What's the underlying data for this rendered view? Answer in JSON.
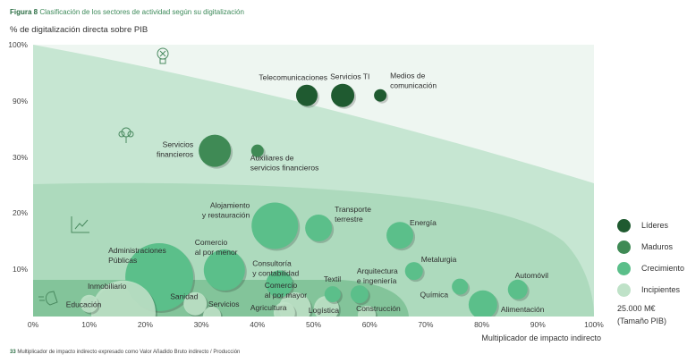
{
  "figure": {
    "label": "Figura 8",
    "title": "Clasificación de los sectores de actividad según su digitalización"
  },
  "footnote": {
    "number": "33",
    "text": "Multiplicador de impacto indirecto expresado como Valor Añadido Bruto indirecto / Producción"
  },
  "chart_data": {
    "type": "scatter",
    "subtype": "bubble",
    "xlabel": "Multiplicador de impacto indirecto",
    "ylabel": "% de digitalización directa sobre PIB",
    "x_ticks": [
      "0%",
      "10%",
      "20%",
      "30%",
      "40%",
      "50%",
      "60%",
      "70%",
      "80%",
      "90%",
      "100%"
    ],
    "y_ticks": [
      "100%",
      "90%",
      "30%",
      "20%",
      "10%"
    ],
    "y_tick_values": [
      100,
      90,
      30,
      20,
      10
    ],
    "xlim": [
      0,
      100
    ],
    "ylim": [
      0,
      100
    ],
    "y_scale": "piecewise (broken between 30% and 90%)",
    "grid": false,
    "legend_position": "right",
    "colors": {
      "Líderes": "#1f5a30",
      "Maduros": "#3f8a55",
      "Crecimiento": "#5bbf8a",
      "Incipientes": "#bfe2c8"
    },
    "legend": {
      "items": [
        "Líderes",
        "Maduros",
        "Crecimiento",
        "Incipientes"
      ],
      "size_label": "25.000 M€",
      "size_note": "(Tamaño PIB)"
    },
    "zone_icons": [
      "lightbulb-icon",
      "tree-icon",
      "growth-chart-icon",
      "hand-icon"
    ],
    "points": [
      {
        "label": "Telecomunicaciones",
        "x": 48.8,
        "y": 91,
        "size": 12,
        "group": "Líderes"
      },
      {
        "label": "Servicios TI",
        "x": 55.2,
        "y": 91,
        "size": 13,
        "group": "Líderes"
      },
      {
        "label": "Medios de comunicación",
        "x": 61.9,
        "y": 91,
        "size": 7,
        "group": "Líderes"
      },
      {
        "label": "Servicios financieros",
        "x": 32.4,
        "y": 37,
        "size": 18,
        "group": "Maduros"
      },
      {
        "label": "Auxiliares de servicios financieros",
        "x": 40.0,
        "y": 37,
        "size": 7,
        "group": "Maduros"
      },
      {
        "label": "Alojamiento y restauración",
        "x": 43.1,
        "y": 17.7,
        "size": 26,
        "group": "Crecimiento"
      },
      {
        "label": "Transporte terrestre",
        "x": 50.9,
        "y": 17.3,
        "size": 15,
        "group": "Crecimiento"
      },
      {
        "label": "Energía",
        "x": 65.4,
        "y": 16.0,
        "size": 15,
        "group": "Crecimiento"
      },
      {
        "label": "Metalurgia",
        "x": 67.9,
        "y": 9.6,
        "size": 10,
        "group": "Crecimiento"
      },
      {
        "label": "Arquitectura e ingeniería",
        "x": 58.2,
        "y": 4.7,
        "size": 10,
        "group": "Crecimiento"
      },
      {
        "label": "Textil",
        "x": 53.4,
        "y": 4.7,
        "size": 9,
        "group": "Crecimiento"
      },
      {
        "label": "Química",
        "x": 76.1,
        "y": 6.3,
        "size": 9,
        "group": "Crecimiento"
      },
      {
        "label": "Automóvil",
        "x": 86.4,
        "y": 5.7,
        "size": 11,
        "group": "Crecimiento"
      },
      {
        "label": "Alimentación",
        "x": 80.2,
        "y": 2.5,
        "size": 16,
        "group": "Crecimiento"
      },
      {
        "label": "Consultoría y contabilidad",
        "x": 43.9,
        "y": 6.9,
        "size": 15,
        "group": "Crecimiento"
      },
      {
        "label": "Comercio al por menor",
        "x": 34.1,
        "y": 9.8,
        "size": 23,
        "group": "Crecimiento"
      },
      {
        "label": "Administraciones Públicas",
        "x": 22.5,
        "y": 8.3,
        "size": 38,
        "group": "Crecimiento"
      },
      {
        "label": "Inmobiliario",
        "x": 16.1,
        "y": 0.8,
        "size": 36,
        "group": "Incipientes"
      },
      {
        "label": "Educación",
        "x": 10.0,
        "y": 2.7,
        "size": 10,
        "group": "Incipientes"
      },
      {
        "label": "Sanidad",
        "x": 28.9,
        "y": 2.7,
        "size": 13,
        "group": "Incipientes"
      },
      {
        "label": "Servicios",
        "x": 31.9,
        "y": 0.2,
        "size": 10,
        "group": "Incipientes"
      },
      {
        "label": "Agricultura",
        "x": 44.8,
        "y": 0.8,
        "size": 12,
        "group": "Incipientes"
      },
      {
        "label": "Comercio al por mayor",
        "x": 46.7,
        "y": 1.7,
        "size": 18,
        "group": "Incipientes"
      },
      {
        "label": "Logística",
        "x": 52.3,
        "y": 1.7,
        "size": 14,
        "group": "Incipientes"
      },
      {
        "label": "Construcción",
        "x": 59.5,
        "y": 0.4,
        "size": 10,
        "group": "Incipientes"
      }
    ]
  }
}
